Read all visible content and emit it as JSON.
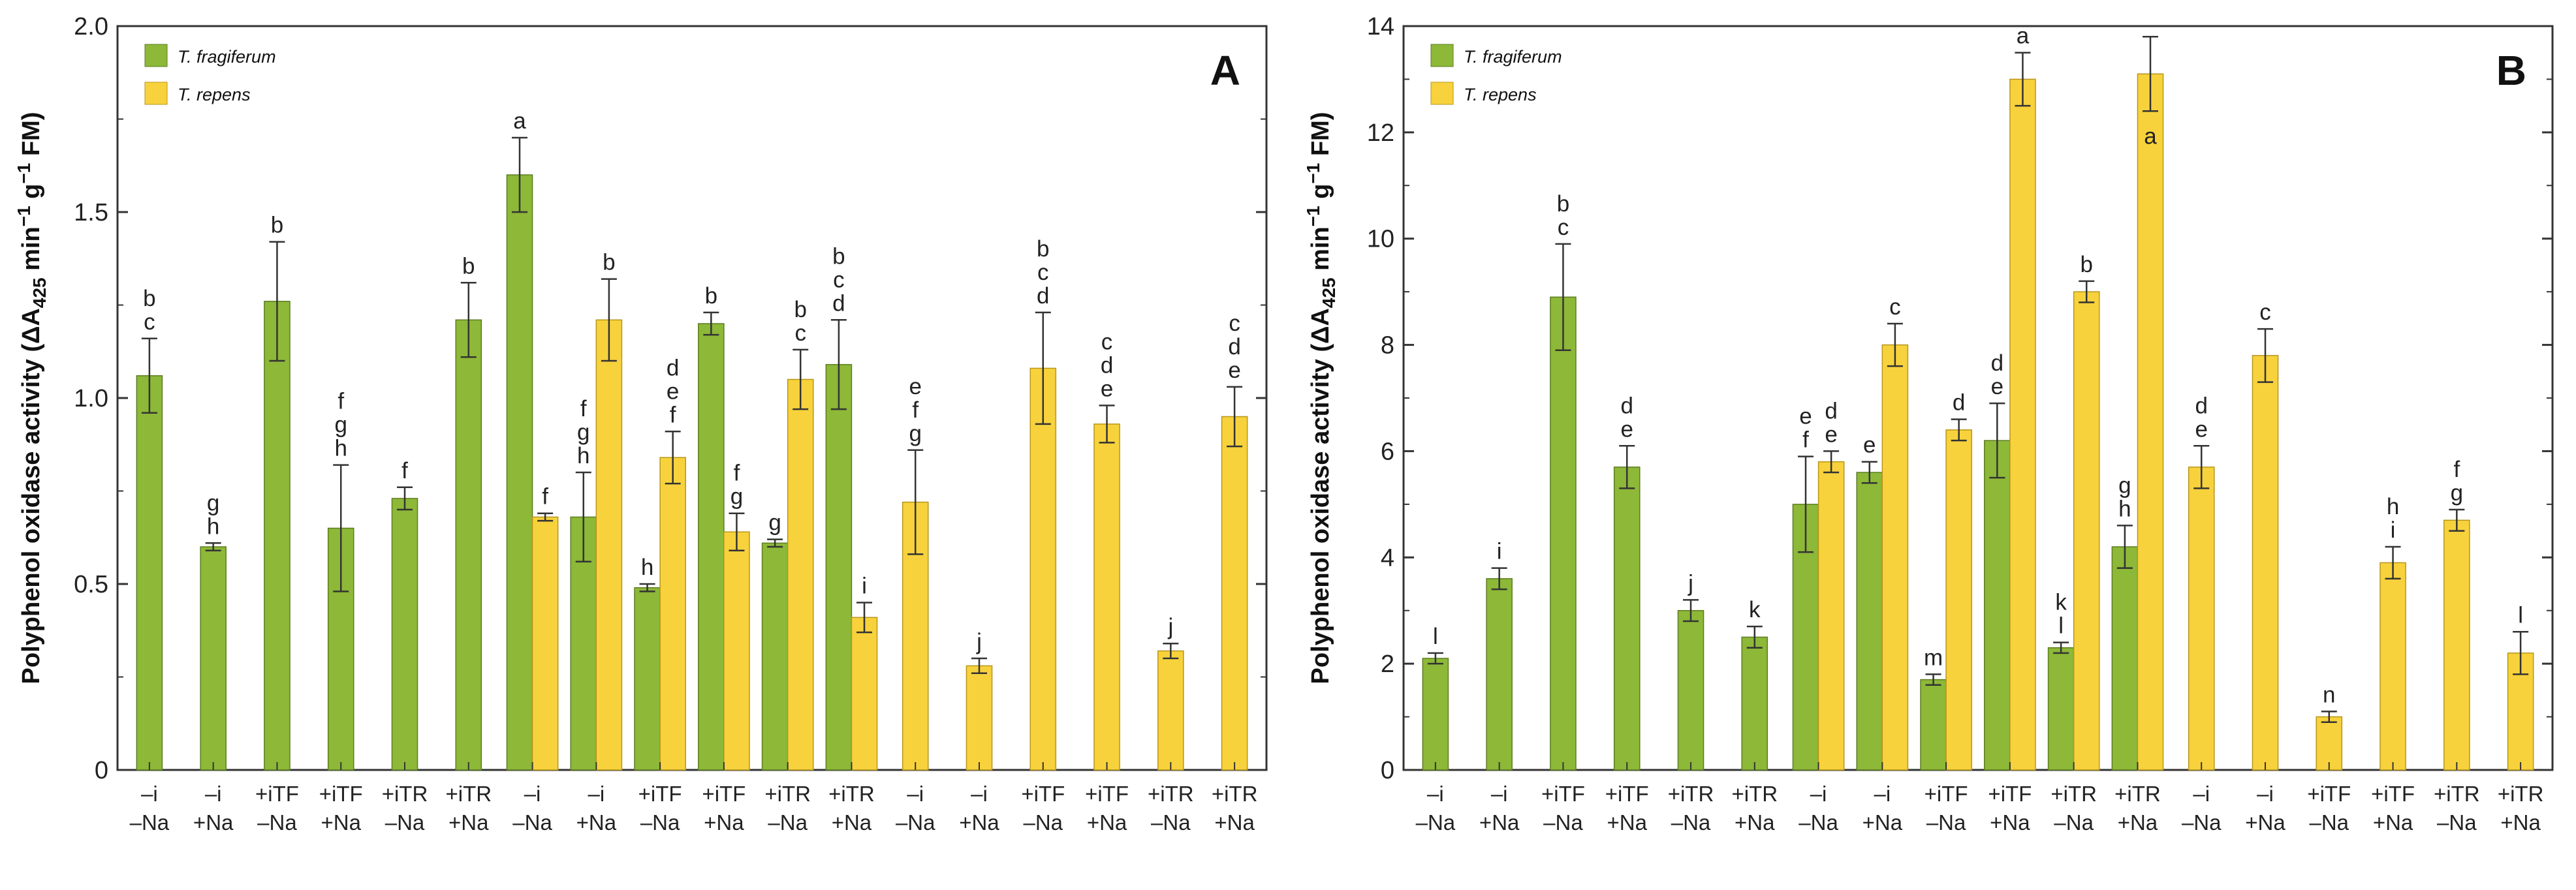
{
  "colors": {
    "fragiferum": "#8db838",
    "repens": "#f7d23c",
    "errbar": "#333333",
    "axis": "#333333"
  },
  "chart_data": [
    {
      "panel": "A",
      "type": "bar",
      "ylabel": "Polyphenol oxidase activity (ΔA425 min−1 g−1 FM)",
      "ylim": [
        0,
        2.0
      ],
      "yticks": [
        "0",
        "0.5",
        "1.0",
        "1.5",
        "2.0"
      ],
      "ytick_values": [
        0,
        0.5,
        1.0,
        1.5,
        2.0
      ],
      "legend": [
        "T. fragiferum",
        "T. repens"
      ],
      "categories": [
        {
          "line1": "–i",
          "line2": "–Na"
        },
        {
          "line1": "–i",
          "line2": "+Na"
        },
        {
          "line1": "+iTF",
          "line2": "–Na"
        },
        {
          "line1": "+iTF",
          "line2": "+Na"
        },
        {
          "line1": "+iTR",
          "line2": "–Na"
        },
        {
          "line1": "+iTR",
          "line2": "+Na"
        },
        {
          "line1": "–i",
          "line2": "–Na"
        },
        {
          "line1": "–i",
          "line2": "+Na"
        },
        {
          "line1": "+iTF",
          "line2": "–Na"
        },
        {
          "line1": "+iTF",
          "line2": "+Na"
        },
        {
          "line1": "+iTR",
          "line2": "–Na"
        },
        {
          "line1": "+iTR",
          "line2": "+Na"
        },
        {
          "line1": "–i",
          "line2": "–Na"
        },
        {
          "line1": "–i",
          "line2": "+Na"
        },
        {
          "line1": "+iTF",
          "line2": "–Na"
        },
        {
          "line1": "+iTF",
          "line2": "+Na"
        },
        {
          "line1": "+iTR",
          "line2": "–Na"
        },
        {
          "line1": "+iTR",
          "line2": "+Na"
        }
      ],
      "bars": [
        {
          "cat": 0,
          "series": "T. fragiferum",
          "value": 1.06,
          "err": 0.1,
          "sig": [
            "b",
            "c"
          ]
        },
        {
          "cat": 1,
          "series": "T. fragiferum",
          "value": 0.6,
          "err": 0.01,
          "sig": [
            "g",
            "h"
          ]
        },
        {
          "cat": 2,
          "series": "T. fragiferum",
          "value": 1.26,
          "err": 0.16,
          "sig": [
            "b"
          ]
        },
        {
          "cat": 3,
          "series": "T. fragiferum",
          "value": 0.65,
          "err": 0.17,
          "sig": [
            "f",
            "g",
            "h"
          ]
        },
        {
          "cat": 4,
          "series": "T. fragiferum",
          "value": 0.73,
          "err": 0.03,
          "sig": [
            "f"
          ]
        },
        {
          "cat": 5,
          "series": "T. fragiferum",
          "value": 1.21,
          "err": 0.1,
          "sig": [
            "b"
          ]
        },
        {
          "cat": 6,
          "series": "T. fragiferum",
          "value": 1.6,
          "err": 0.1,
          "sig": [
            "a"
          ]
        },
        {
          "cat": 6,
          "series": "T. repens",
          "value": 0.68,
          "err": 0.01,
          "sig": [
            "f"
          ]
        },
        {
          "cat": 7,
          "series": "T. fragiferum",
          "value": 0.68,
          "err": 0.12,
          "sig": [
            "f",
            "g",
            "h"
          ]
        },
        {
          "cat": 7,
          "series": "T. repens",
          "value": 1.21,
          "err": 0.11,
          "sig": [
            "b"
          ]
        },
        {
          "cat": 8,
          "series": "T. fragiferum",
          "value": 0.49,
          "err": 0.01,
          "sig": [
            "h"
          ]
        },
        {
          "cat": 8,
          "series": "T. repens",
          "value": 0.84,
          "err": 0.07,
          "sig": [
            "d",
            "e",
            "f"
          ]
        },
        {
          "cat": 9,
          "series": "T. fragiferum",
          "value": 1.2,
          "err": 0.03,
          "sig": [
            "b"
          ]
        },
        {
          "cat": 9,
          "series": "T. repens",
          "value": 0.64,
          "err": 0.05,
          "sig": [
            "f",
            "g"
          ]
        },
        {
          "cat": 10,
          "series": "T. fragiferum",
          "value": 0.61,
          "err": 0.01,
          "sig": [
            "g"
          ]
        },
        {
          "cat": 10,
          "series": "T. repens",
          "value": 1.05,
          "err": 0.08,
          "sig": [
            "b",
            "c"
          ]
        },
        {
          "cat": 11,
          "series": "T. fragiferum",
          "value": 1.09,
          "err": 0.12,
          "sig": [
            "b",
            "c",
            "d"
          ]
        },
        {
          "cat": 11,
          "series": "T. repens",
          "value": 0.41,
          "err": 0.04,
          "sig": [
            "i"
          ]
        },
        {
          "cat": 12,
          "series": "T. repens",
          "value": 0.72,
          "err": 0.14,
          "sig": [
            "e",
            "f",
            "g"
          ]
        },
        {
          "cat": 13,
          "series": "T. repens",
          "value": 0.28,
          "err": 0.02,
          "sig": [
            "j"
          ]
        },
        {
          "cat": 14,
          "series": "T. repens",
          "value": 1.08,
          "err": 0.15,
          "sig": [
            "b",
            "c",
            "d"
          ]
        },
        {
          "cat": 15,
          "series": "T. repens",
          "value": 0.93,
          "err": 0.05,
          "sig": [
            "c",
            "d",
            "e"
          ]
        },
        {
          "cat": 16,
          "series": "T. repens",
          "value": 0.32,
          "err": 0.02,
          "sig": [
            "j"
          ]
        },
        {
          "cat": 17,
          "series": "T. repens",
          "value": 0.95,
          "err": 0.08,
          "sig": [
            "c",
            "d",
            "e"
          ]
        }
      ]
    },
    {
      "panel": "B",
      "type": "bar",
      "ylabel": "Polyphenol oxidase activity (ΔA425 min−1 g−1 FM)",
      "ylim": [
        0,
        14
      ],
      "yticks": [
        "0",
        "2",
        "4",
        "6",
        "8",
        "10",
        "12",
        "14"
      ],
      "ytick_values": [
        0,
        2,
        4,
        6,
        8,
        10,
        12,
        14
      ],
      "legend": [
        "T. fragiferum",
        "T. repens"
      ],
      "categories": [
        {
          "line1": "–i",
          "line2": "–Na"
        },
        {
          "line1": "–i",
          "line2": "+Na"
        },
        {
          "line1": "+iTF",
          "line2": "–Na"
        },
        {
          "line1": "+iTF",
          "line2": "+Na"
        },
        {
          "line1": "+iTR",
          "line2": "–Na"
        },
        {
          "line1": "+iTR",
          "line2": "+Na"
        },
        {
          "line1": "–i",
          "line2": "–Na"
        },
        {
          "line1": "–i",
          "line2": "+Na"
        },
        {
          "line1": "+iTF",
          "line2": "–Na"
        },
        {
          "line1": "+iTF",
          "line2": "+Na"
        },
        {
          "line1": "+iTR",
          "line2": "–Na"
        },
        {
          "line1": "+iTR",
          "line2": "+Na"
        },
        {
          "line1": "–i",
          "line2": "–Na"
        },
        {
          "line1": "–i",
          "line2": "+Na"
        },
        {
          "line1": "+iTF",
          "line2": "–Na"
        },
        {
          "line1": "+iTF",
          "line2": "+Na"
        },
        {
          "line1": "+iTR",
          "line2": "–Na"
        },
        {
          "line1": "+iTR",
          "line2": "+Na"
        }
      ],
      "bars": [
        {
          "cat": 0,
          "series": "T. fragiferum",
          "value": 2.1,
          "err": 0.1,
          "sig": [
            "l"
          ]
        },
        {
          "cat": 1,
          "series": "T. fragiferum",
          "value": 3.6,
          "err": 0.2,
          "sig": [
            "i"
          ]
        },
        {
          "cat": 2,
          "series": "T. fragiferum",
          "value": 8.9,
          "err": 1.0,
          "sig": [
            "b",
            "c"
          ]
        },
        {
          "cat": 3,
          "series": "T. fragiferum",
          "value": 5.7,
          "err": 0.4,
          "sig": [
            "d",
            "e"
          ]
        },
        {
          "cat": 4,
          "series": "T. fragiferum",
          "value": 3.0,
          "err": 0.2,
          "sig": [
            "j"
          ]
        },
        {
          "cat": 5,
          "series": "T. fragiferum",
          "value": 2.5,
          "err": 0.2,
          "sig": [
            "k"
          ]
        },
        {
          "cat": 6,
          "series": "T. fragiferum",
          "value": 5.0,
          "err": 0.9,
          "sig": [
            "e",
            "f"
          ]
        },
        {
          "cat": 6,
          "series": "T. repens",
          "value": 5.8,
          "err": 0.2,
          "sig": [
            "d",
            "e"
          ]
        },
        {
          "cat": 7,
          "series": "T. fragiferum",
          "value": 5.6,
          "err": 0.2,
          "sig": [
            "e"
          ]
        },
        {
          "cat": 7,
          "series": "T. repens",
          "value": 8.0,
          "err": 0.4,
          "sig": [
            "c"
          ]
        },
        {
          "cat": 8,
          "series": "T. fragiferum",
          "value": 1.7,
          "err": 0.1,
          "sig": [
            "m"
          ]
        },
        {
          "cat": 8,
          "series": "T. repens",
          "value": 6.4,
          "err": 0.2,
          "sig": [
            "d"
          ]
        },
        {
          "cat": 9,
          "series": "T. fragiferum",
          "value": 6.2,
          "err": 0.7,
          "sig": [
            "d",
            "e"
          ]
        },
        {
          "cat": 9,
          "series": "T. repens",
          "value": 13.0,
          "err": 0.5,
          "sig": [
            "a"
          ]
        },
        {
          "cat": 10,
          "series": "T. fragiferum",
          "value": 2.3,
          "err": 0.1,
          "sig": [
            "k",
            "l"
          ]
        },
        {
          "cat": 10,
          "series": "T. repens",
          "value": 9.0,
          "err": 0.2,
          "sig": [
            "b"
          ]
        },
        {
          "cat": 11,
          "series": "T. fragiferum",
          "value": 4.2,
          "err": 0.4,
          "sig": [
            "g",
            "h"
          ]
        },
        {
          "cat": 11,
          "series": "T. repens",
          "value": 13.1,
          "err": 0.7,
          "sig": [
            "a"
          ],
          "sig_inside": true
        },
        {
          "cat": 12,
          "series": "T. repens",
          "value": 5.7,
          "err": 0.4,
          "sig": [
            "d",
            "e"
          ]
        },
        {
          "cat": 13,
          "series": "T. repens",
          "value": 7.8,
          "err": 0.5,
          "sig": [
            "c"
          ]
        },
        {
          "cat": 14,
          "series": "T. repens",
          "value": 1.0,
          "err": 0.1,
          "sig": [
            "n"
          ]
        },
        {
          "cat": 15,
          "series": "T. repens",
          "value": 3.9,
          "err": 0.3,
          "sig": [
            "h",
            "i"
          ]
        },
        {
          "cat": 16,
          "series": "T. repens",
          "value": 4.7,
          "err": 0.2,
          "sig": [
            "f",
            "g"
          ]
        },
        {
          "cat": 17,
          "series": "T. repens",
          "value": 2.2,
          "err": 0.4,
          "sig": [
            "l"
          ]
        }
      ]
    }
  ]
}
